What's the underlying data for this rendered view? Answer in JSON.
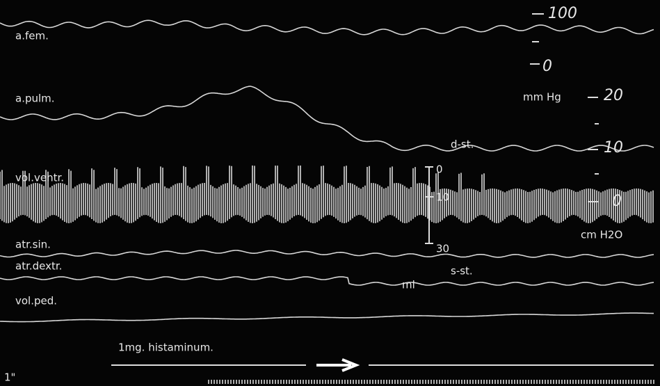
{
  "trace_labels": [
    "a.fem.",
    "a.pulm.",
    "vol.ventr.",
    "atr.sin.",
    "atr.dextr.",
    "vol.ped."
  ],
  "marker": "1mg. histaminum.",
  "time_label": "1\"",
  "pressure_scale_fem": {
    "top": "100",
    "bottom": "0"
  },
  "pressure_scale": {
    "unit": "mm Hg",
    "ticks": [
      "20",
      "10",
      "0"
    ],
    "unit2": "cm H2O"
  },
  "volume_scale": {
    "ticks": [
      "0",
      "10",
      "30"
    ],
    "unit": "ml"
  },
  "annotations": {
    "diastolic": "d-st.",
    "systolic": "s-st."
  }
}
